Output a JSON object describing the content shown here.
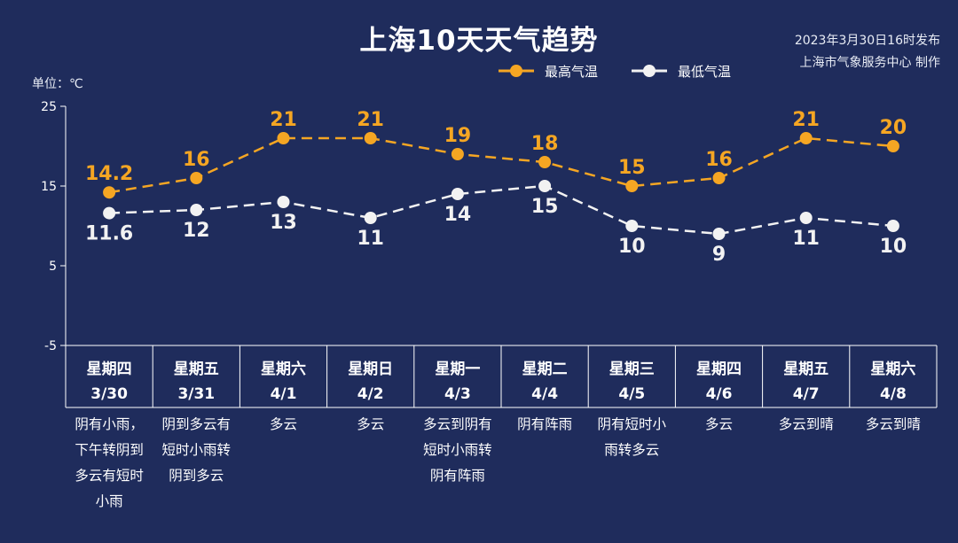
{
  "title": "上海10天天气趋势",
  "issue": {
    "line1": "2023年3月30日16时发布",
    "line2": "上海市气象服务中心 制作"
  },
  "unit_label": "单位：℃",
  "colors": {
    "background": "#1f2c5c",
    "high": "#f5a623",
    "low": "#f2f2f2",
    "axis": "#ffffff"
  },
  "chart_data": {
    "type": "line",
    "title": "上海10天天气趋势",
    "ylabel": "单位：℃",
    "ylim": [
      -5,
      25
    ],
    "yticks": [
      25,
      15,
      5,
      -5
    ],
    "grid": false,
    "legend_position": "top-center",
    "categories": [
      "3/30",
      "3/31",
      "4/1",
      "4/2",
      "4/3",
      "4/4",
      "4/5",
      "4/6",
      "4/7",
      "4/8"
    ],
    "weekdays": [
      "星期四",
      "星期五",
      "星期六",
      "星期日",
      "星期一",
      "星期二",
      "星期三",
      "星期四",
      "星期五",
      "星期六"
    ],
    "weather": [
      [
        "阴有小雨，",
        "下午转阴到",
        "多云有短时",
        "小雨"
      ],
      [
        "阴到多云有",
        "短时小雨转",
        "阴到多云"
      ],
      [
        "多云"
      ],
      [
        "多云"
      ],
      [
        "多云到阴有",
        "短时小雨转",
        "阴有阵雨"
      ],
      [
        "阴有阵雨"
      ],
      [
        "阴有短时小",
        "雨转多云"
      ],
      [
        "多云"
      ],
      [
        "多云到晴"
      ],
      [
        "多云到晴"
      ]
    ],
    "series": [
      {
        "name": "最高气温",
        "values": [
          14.2,
          16,
          21,
          21,
          19,
          18,
          15,
          16,
          21,
          20
        ],
        "labels": [
          "14.2",
          "16",
          "21",
          "21",
          "19",
          "18",
          "15",
          "16",
          "21",
          "20"
        ],
        "color": "#f5a623"
      },
      {
        "name": "最低气温",
        "values": [
          11.6,
          12,
          13,
          11,
          14,
          15,
          10,
          9,
          11,
          10
        ],
        "labels": [
          "11.6",
          "12",
          "13",
          "11",
          "14",
          "15",
          "10",
          "9",
          "11",
          "10"
        ],
        "color": "#f2f2f2"
      }
    ]
  }
}
